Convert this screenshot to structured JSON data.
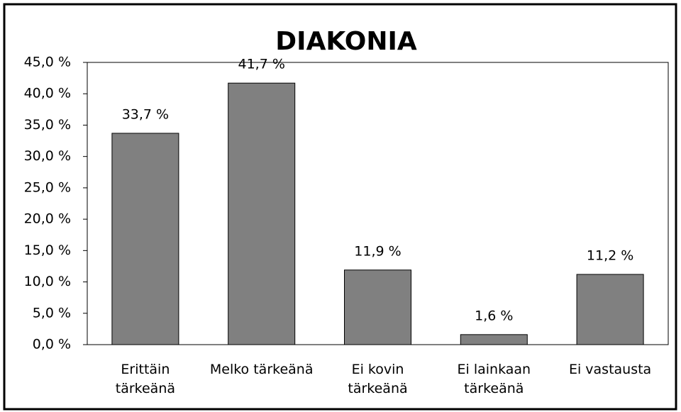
{
  "chart_data": {
    "type": "bar",
    "title": "DIAKONIA",
    "categories": [
      "Erittäin tärkeänä",
      "Melko tärkeänä",
      "Ei kovin tärkeänä",
      "Ei lainkaan tärkeänä",
      "Ei vastausta"
    ],
    "values": [
      33.7,
      41.7,
      11.9,
      1.6,
      11.2
    ],
    "value_labels": [
      "33,7 %",
      "41,7 %",
      "11,9 %",
      "1,6 %",
      "11,2 %"
    ],
    "color": "#808080",
    "ylim": [
      0,
      45
    ],
    "yticks": [
      {
        "value": 0,
        "label": "0,0 %"
      },
      {
        "value": 5,
        "label": "5,0 %"
      },
      {
        "value": 10,
        "label": "10,0 %"
      },
      {
        "value": 15,
        "label": "15,0 %"
      },
      {
        "value": 20,
        "label": "20,0 %"
      },
      {
        "value": 25,
        "label": "25,0 %"
      },
      {
        "value": 30,
        "label": "30,0 %"
      },
      {
        "value": 35,
        "label": "35,0 %"
      },
      {
        "value": 40,
        "label": "40,0 %"
      },
      {
        "value": 45,
        "label": "45,0 %"
      }
    ],
    "grid": false
  }
}
